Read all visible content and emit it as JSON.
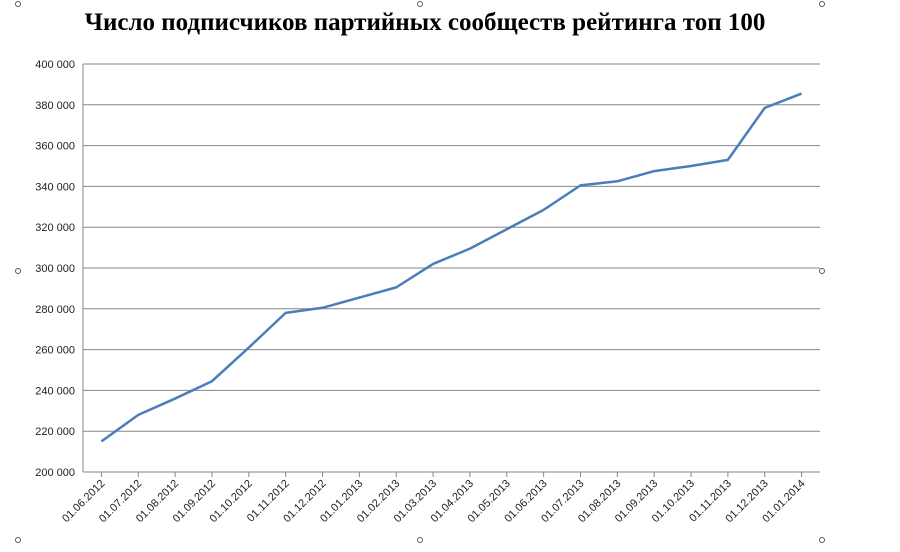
{
  "chart_data": {
    "type": "line",
    "title": "Число подписчиков партийных сообществ рейтинга топ 100",
    "categories": [
      "01.06.2012",
      "01.07.2012",
      "01.08.2012",
      "01.09.2012",
      "01.10.2012",
      "01.11.2012",
      "01.12.2012",
      "01.01.2013",
      "01.02.2013",
      "01.03.2013",
      "01.04.2013",
      "01.05.2013",
      "01.06.2013",
      "01.07.2013",
      "01.08.2013",
      "01.09.2013",
      "01.10.2013",
      "01.11.2013",
      "01.12.2013",
      "01.01.2014"
    ],
    "values": [
      215000,
      228000,
      236000,
      244500,
      261000,
      278000,
      280500,
      285500,
      290500,
      302000,
      309500,
      319000,
      328500,
      340500,
      342500,
      347500,
      350000,
      353000,
      378500,
      385500
    ],
    "color": "#4a7ebb",
    "ylim": [
      200000,
      400000
    ],
    "yticks": [
      {
        "value": 200000,
        "label": "200 000"
      },
      {
        "value": 220000,
        "label": "220 000"
      },
      {
        "value": 240000,
        "label": "240 000"
      },
      {
        "value": 260000,
        "label": "260 000"
      },
      {
        "value": 280000,
        "label": "280 000"
      },
      {
        "value": 300000,
        "label": "300 000"
      },
      {
        "value": 320000,
        "label": "320 000"
      },
      {
        "value": 340000,
        "label": "340 000"
      },
      {
        "value": 360000,
        "label": "360 000"
      },
      {
        "value": 380000,
        "label": "380 000"
      },
      {
        "value": 400000,
        "label": "400 000"
      }
    ],
    "grid": true
  }
}
